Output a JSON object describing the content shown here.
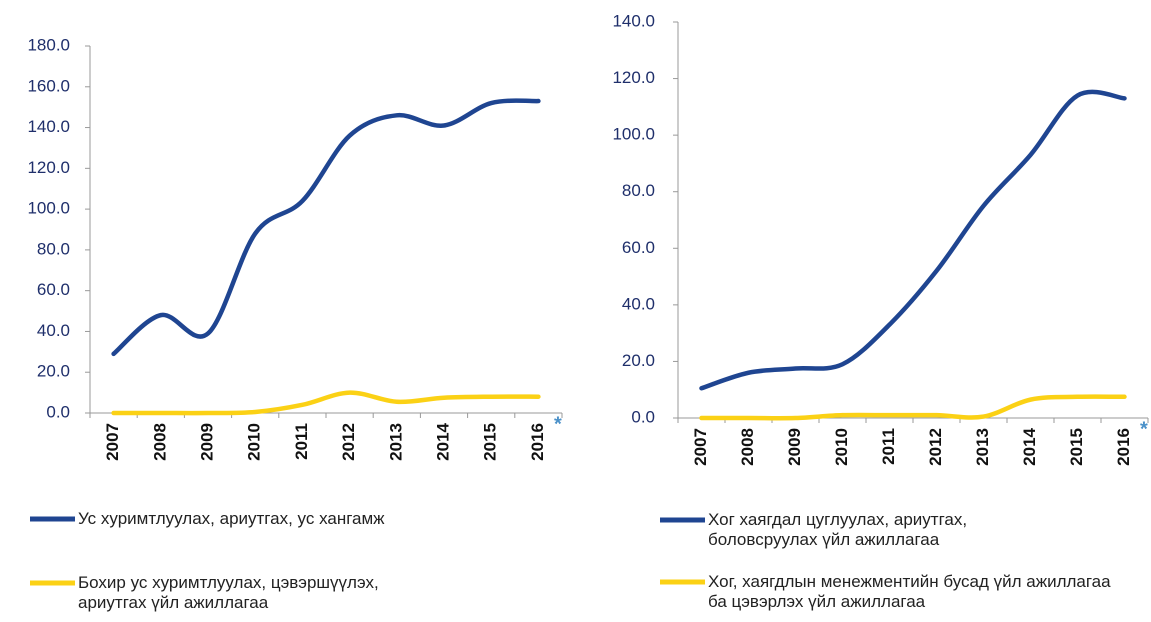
{
  "chart_data": [
    {
      "type": "line",
      "categories": [
        "2007",
        "2008",
        "2009",
        "2010",
        "2011",
        "2012",
        "2013",
        "2014",
        "2015",
        "2016"
      ],
      "annotation": "*",
      "ylim": [
        0,
        180
      ],
      "yticks": [
        {
          "value": 0,
          "label": "0.0"
        },
        {
          "value": 20,
          "label": "20.0"
        },
        {
          "value": 40,
          "label": "40.0"
        },
        {
          "value": 60,
          "label": "60.0"
        },
        {
          "value": 80,
          "label": "80.0"
        },
        {
          "value": 100,
          "label": "100.0"
        },
        {
          "value": 120,
          "label": "120.0"
        },
        {
          "value": 140,
          "label": "140.0"
        },
        {
          "value": 160,
          "label": "160.0"
        },
        {
          "value": 180,
          "label": "180.0"
        }
      ],
      "series": [
        {
          "name": "Ус хуримтлуулах,  ариутгах,  ус хангамж",
          "color": "#1f4591",
          "values": [
            29,
            48,
            39,
            88,
            104,
            136,
            146,
            141,
            152,
            153
          ]
        },
        {
          "name": "Бохир ус хуримтлуулах,  цэвэршүүлэх, ариутгах үйл ажиллагаа",
          "color": "#fbd115",
          "values": [
            0,
            0,
            0,
            0.5,
            4,
            10,
            5.5,
            7.5,
            8,
            8
          ]
        }
      ]
    },
    {
      "type": "line",
      "categories": [
        "2007",
        "2008",
        "2009",
        "2010",
        "2011",
        "2012",
        "2013",
        "2014",
        "2015",
        "2016"
      ],
      "annotation": "*",
      "ylim": [
        0,
        140
      ],
      "yticks": [
        {
          "value": 0,
          "label": "0.0"
        },
        {
          "value": 20,
          "label": "20.0"
        },
        {
          "value": 40,
          "label": "40.0"
        },
        {
          "value": 60,
          "label": "60.0"
        },
        {
          "value": 80,
          "label": "80.0"
        },
        {
          "value": 100,
          "label": "100.0"
        },
        {
          "value": 120,
          "label": "120.0"
        },
        {
          "value": 140,
          "label": "140.0"
        }
      ],
      "series": [
        {
          "name": "Хог хаягдал цуглуулах,  ариутгах, боловсруулах үйл ажиллагаа",
          "color": "#1f4591",
          "values": [
            10.5,
            16,
            17.5,
            19,
            33,
            52,
            75,
            93,
            114,
            113
          ]
        },
        {
          "name": "Хог,  хаягдлын менежментийн бусад үйл ажиллагаа ба цэвэрлэх үйл ажиллагаа",
          "color": "#fbd115",
          "values": [
            0,
            0,
            0,
            1,
            1,
            1,
            0.5,
            6.5,
            7.5,
            7.5
          ]
        }
      ]
    }
  ]
}
